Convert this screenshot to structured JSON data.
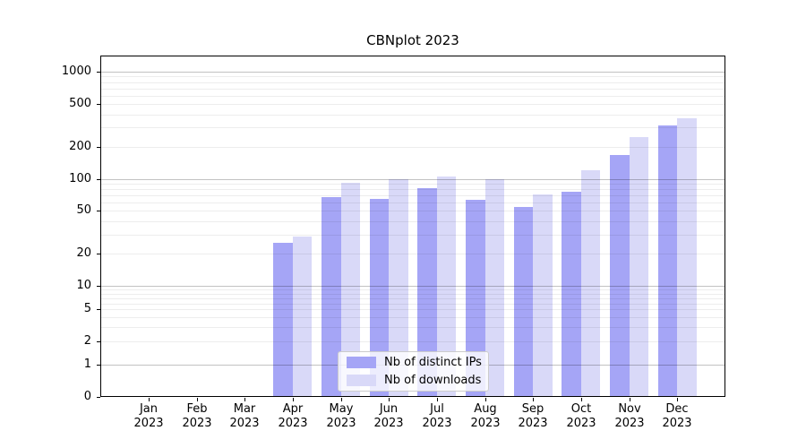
{
  "chart_data": {
    "type": "bar",
    "title": "CBNplot 2023",
    "year": "2023",
    "months": [
      "Jan",
      "Feb",
      "Mar",
      "Apr",
      "May",
      "Jun",
      "Jul",
      "Aug",
      "Sep",
      "Oct",
      "Nov",
      "Dec"
    ],
    "series": [
      {
        "name": "Nb of distinct IPs",
        "color": "#a5a5f6",
        "values": [
          null,
          null,
          null,
          25,
          68,
          65,
          81,
          63,
          54,
          76,
          168,
          315
        ]
      },
      {
        "name": "Nb of downloads",
        "color": "#d9d9f8",
        "values": [
          null,
          null,
          null,
          29,
          91,
          100,
          105,
          100,
          72,
          120,
          245,
          370
        ]
      }
    ],
    "yscale": "symlog",
    "yticks": [
      0,
      1,
      2,
      5,
      10,
      20,
      50,
      100,
      200,
      500,
      1000
    ],
    "ylim": [
      0,
      1250
    ],
    "xlabel": "",
    "ylabel": "",
    "grid": "horizontal log major+minor",
    "legend_position": "lower center inside plot"
  }
}
